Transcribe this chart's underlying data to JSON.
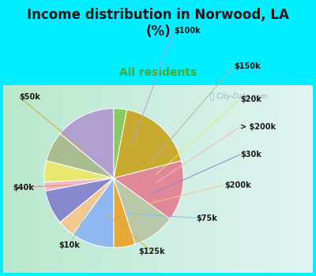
{
  "title": "Income distribution in Norwood, LA\n(%)",
  "subtitle": "All residents",
  "title_color": "#1a1a1a",
  "subtitle_color": "#44aa33",
  "bg_cyan": "#00eeff",
  "bg_chart_left": "#c8eedd",
  "bg_chart_right": "#e8f8f8",
  "watermark": "ⓘ City-Data.com",
  "slices": [
    {
      "label": "$100k",
      "value": 14,
      "color": "#b0a0d0"
    },
    {
      "label": "$150k",
      "value": 7,
      "color": "#a8bc90"
    },
    {
      "label": "$20k",
      "value": 5,
      "color": "#e8e870"
    },
    {
      "label": "> $200k",
      "value": 2,
      "color": "#f0b8c0"
    },
    {
      "label": "$30k",
      "value": 8,
      "color": "#8888cc"
    },
    {
      "label": "$200k",
      "value": 4,
      "color": "#f0c890"
    },
    {
      "label": "$75k",
      "value": 10,
      "color": "#90b8f0"
    },
    {
      "label": "$125k",
      "value": 5,
      "color": "#e8a838"
    },
    {
      "label": "$10k",
      "value": 10,
      "color": "#b8c8a8"
    },
    {
      "label": "$40k",
      "value": 14,
      "color": "#e08898"
    },
    {
      "label": "$50k",
      "value": 18,
      "color": "#c8aa30"
    },
    {
      "label": "",
      "value": 3,
      "color": "#88cc60"
    }
  ]
}
